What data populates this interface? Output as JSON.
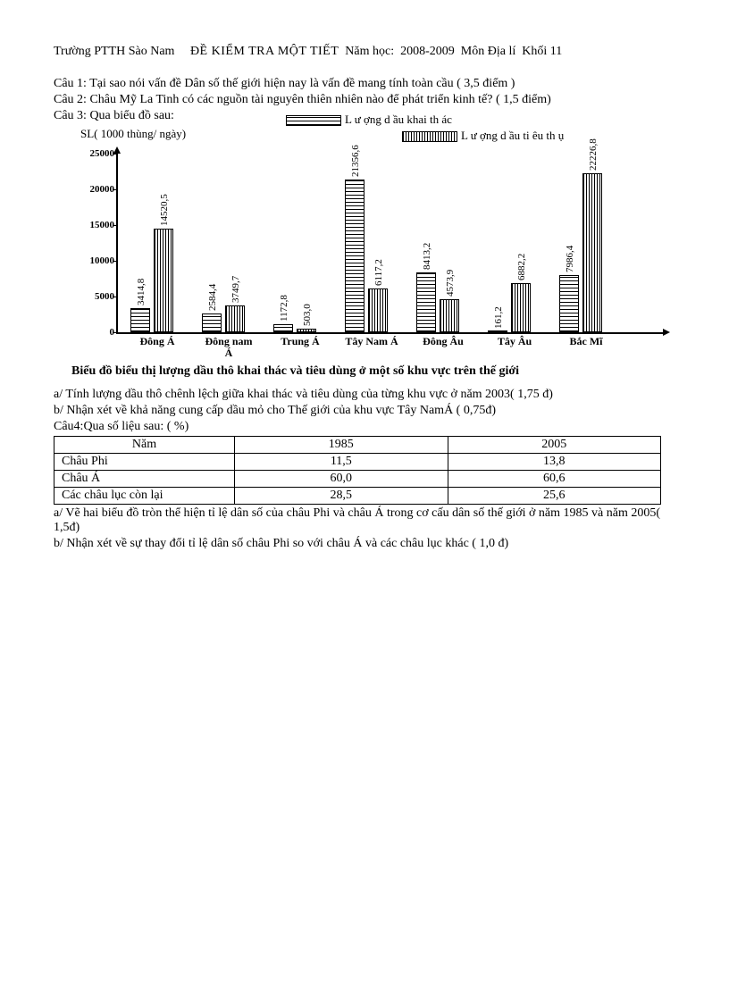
{
  "header": {
    "school": "Trường PTTH Sào Nam",
    "title": "ĐỀ KIỂM TRA MỘT TIẾT",
    "year_label": "Năm học:",
    "year": "2008-2009",
    "subject": "Môn Địa lí",
    "grade": "Khối 11"
  },
  "questions": {
    "q1": "Câu 1: Tại sao nói vấn đề Dân số thế giới hiện nay là vấn đề mang tính toàn cầu ( 3,5 điểm )",
    "q2": "Câu 2: Châu Mỹ La Tinh có các nguồn tài nguyên thiên nhiên nào để phát triển kinh tế? ( 1,5 điểm)",
    "q3": "Câu 3: Qua biểu đồ sau:",
    "q3a": "a/ Tính lượng dầu thô chênh lệch giữa khai thác và tiêu dùng của từng khu vực ở năm 2003( 1,75 đ)",
    "q3b": "b/ Nhận xét về khả năng cung cấp dầu mỏ cho Thế giới của khu vực Tây NamÁ ( 0,75đ)",
    "q4": "Câu4:Qua số liệu sau: ( %)",
    "q4a": "a/ Vẽ hai biểu đồ tròn thể hiện tỉ lệ dân số của châu Phi và châu Á trong cơ cấu dân số thế giới ở năm 1985 và năm 2005( 1,5đ)",
    "q4b": "b/ Nhận xét về sự thay đổi tỉ lệ dân số châu Phi so với châu Á và các châu lục khác ( 1,0 đ)"
  },
  "chart": {
    "ylabel": "SL( 1000 thùng/ ngày)",
    "legend1": "L ư ợng d ầu khai th ác",
    "legend2": "L ư ợng d ầu ti êu th ụ",
    "ymax": 25000,
    "yticks": [
      0,
      5000,
      10000,
      15000,
      20000,
      25000
    ],
    "title": "Biểu đồ biểu thị lượng dầu thô khai thác và tiêu dùng ở một số khu vực trên thế giới",
    "categories": [
      "Đông Á",
      "Đông nam Á",
      "Trung Á",
      "Tây Nam Á",
      "Đông Âu",
      "Tây Âu",
      "Bắc Mĩ"
    ],
    "series1": [
      3414.8,
      2584.4,
      1172.8,
      21356.6,
      8413.2,
      161.2,
      7986.4
    ],
    "series2": [
      14520.5,
      3749.7,
      503.0,
      6117.2,
      4573.9,
      6882.2,
      22226.8
    ],
    "labels1": [
      "3414,8",
      "2584,4",
      "1172,8",
      "21356,6",
      "8413,2",
      "161,2",
      "7986,4"
    ],
    "labels2": [
      "14520,5",
      "3749,7",
      "503,0",
      "6117,2",
      "4573,9",
      "6882,2",
      "22226,8"
    ],
    "bar_border": "#000000",
    "background": "#ffffff"
  },
  "table": {
    "headers": [
      "Năm",
      "1985",
      "2005"
    ],
    "rows": [
      [
        "Châu Phi",
        "11,5",
        "13,8"
      ],
      [
        "Châu Á",
        "60,0",
        "60,6"
      ],
      [
        "Các châu lục còn lại",
        "28,5",
        "25,6"
      ]
    ]
  }
}
